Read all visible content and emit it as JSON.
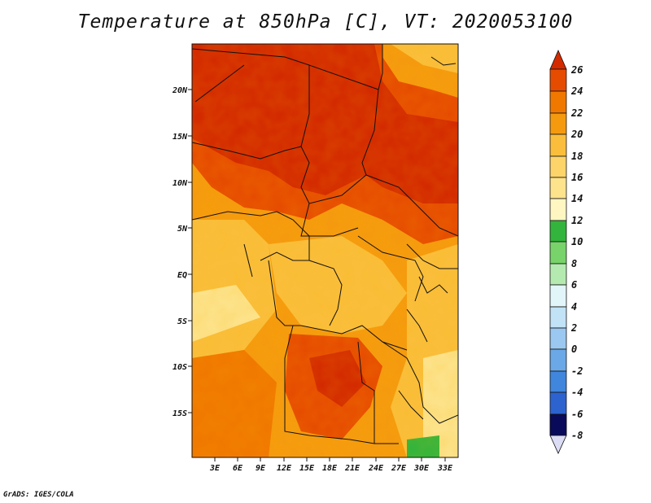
{
  "title": "Temperature at 850hPa [C], VT: 2020053100",
  "credit": "GrADS: IGES/COLA",
  "map": {
    "lat_labels": [
      "20N",
      "15N",
      "10N",
      "5N",
      "EQ",
      "5S",
      "10S",
      "15S"
    ],
    "lon_labels": [
      "3E",
      "6E",
      "9E",
      "12E",
      "15E",
      "18E",
      "21E",
      "24E",
      "27E",
      "30E",
      "33E"
    ],
    "region": "Central Africa",
    "variable": "temperature_850hPa_celsius"
  },
  "colorbar": {
    "labels": [
      "26",
      "24",
      "22",
      "20",
      "18",
      "16",
      "14",
      "12",
      "10",
      "8",
      "6",
      "4",
      "2",
      "0",
      "-2",
      "-4",
      "-6",
      "-8"
    ],
    "colors": [
      "#d32a00",
      "#e64c00",
      "#f07800",
      "#f59a0f",
      "#fabe3c",
      "#fde38c",
      "#fff6c2",
      "#33b43c",
      "#78d36a",
      "#b4eab0",
      "#e2f5f8",
      "#c2e2f6",
      "#9ac8f0",
      "#6ba8e8",
      "#3f86dc",
      "#2d63cf",
      "#1e3fb7",
      "#101f8d",
      "#0a0a5a",
      "#dcdcf5"
    ]
  }
}
